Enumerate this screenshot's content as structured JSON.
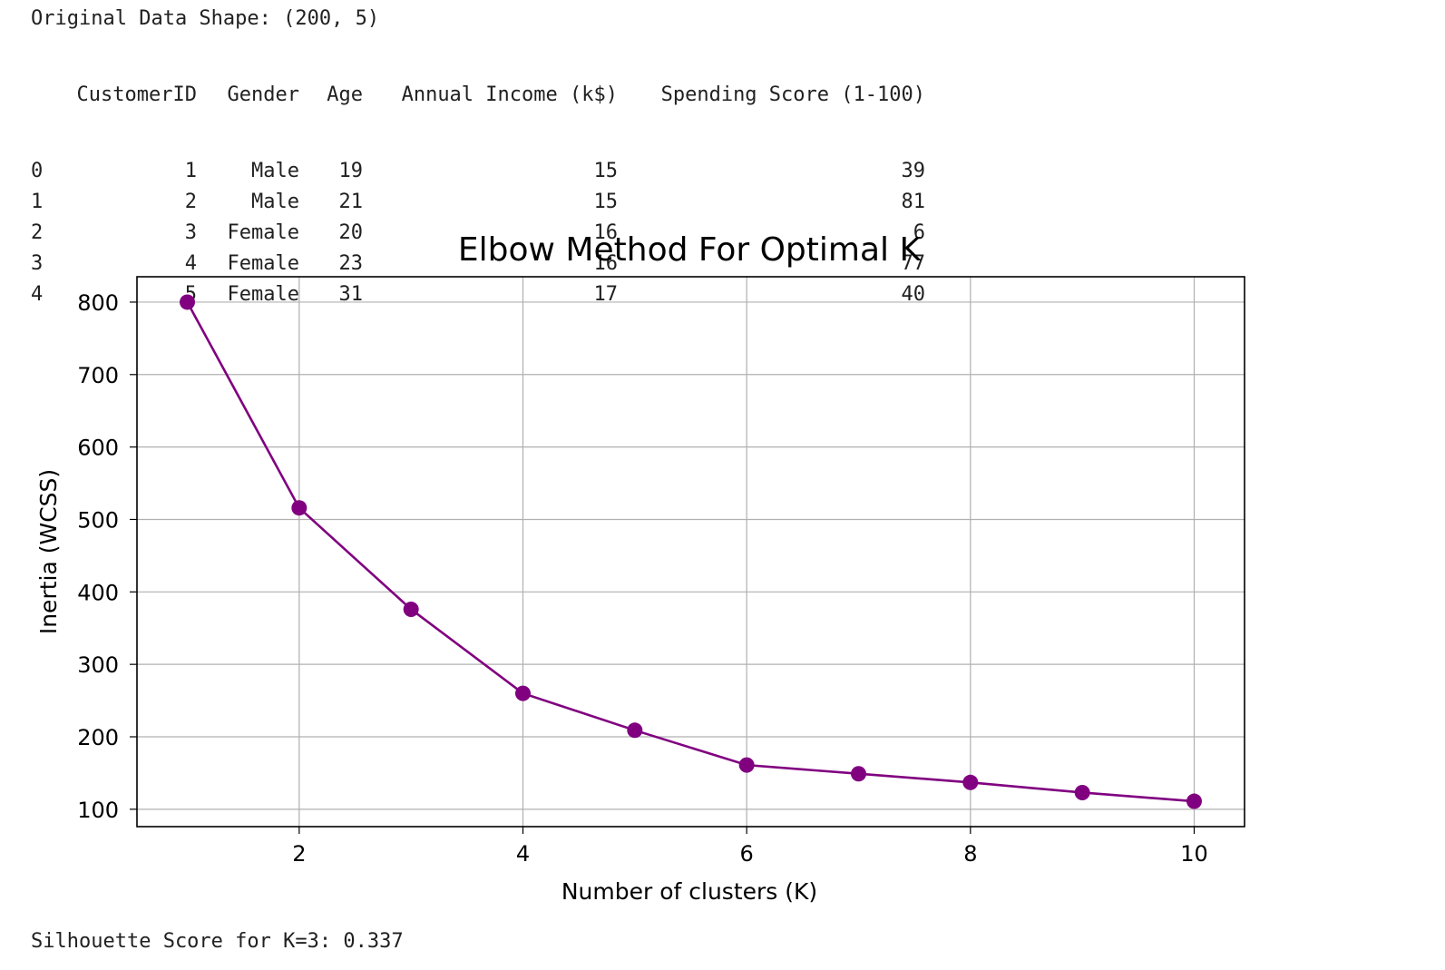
{
  "output": {
    "shape_line": "Original Data Shape: (200, 5)",
    "silhouette_line": "Silhouette Score for K=3: 0.337"
  },
  "dataframe": {
    "columns": [
      "CustomerID",
      "Gender",
      "Age",
      "Annual Income (k$)",
      "Spending Score (1-100)"
    ],
    "rows": [
      {
        "index": "0",
        "cells": [
          "1",
          "Male",
          "19",
          "15",
          "39"
        ]
      },
      {
        "index": "1",
        "cells": [
          "2",
          "Male",
          "21",
          "15",
          "81"
        ]
      },
      {
        "index": "2",
        "cells": [
          "3",
          "Female",
          "20",
          "16",
          "6"
        ]
      },
      {
        "index": "3",
        "cells": [
          "4",
          "Female",
          "23",
          "16",
          "77"
        ]
      },
      {
        "index": "4",
        "cells": [
          "5",
          "Female",
          "31",
          "17",
          "40"
        ]
      }
    ]
  },
  "chart_data": {
    "type": "line",
    "title": "Elbow Method For Optimal K",
    "xlabel": "Number of clusters (K)",
    "ylabel": "Inertia (WCSS)",
    "x": [
      1,
      2,
      3,
      4,
      5,
      6,
      7,
      8,
      9,
      10
    ],
    "series": [
      {
        "values": [
          800,
          516,
          376,
          260,
          209,
          161,
          149,
          137,
          123,
          111
        ]
      }
    ],
    "xticks": [
      "2",
      "4",
      "6",
      "8",
      "10"
    ],
    "yticks": [
      "100",
      "200",
      "300",
      "400",
      "500",
      "600",
      "700",
      "800"
    ],
    "xlim": [
      0.55,
      10.45
    ],
    "ylim": [
      76,
      835
    ],
    "grid": true,
    "marker": "o",
    "color": "#800080"
  }
}
